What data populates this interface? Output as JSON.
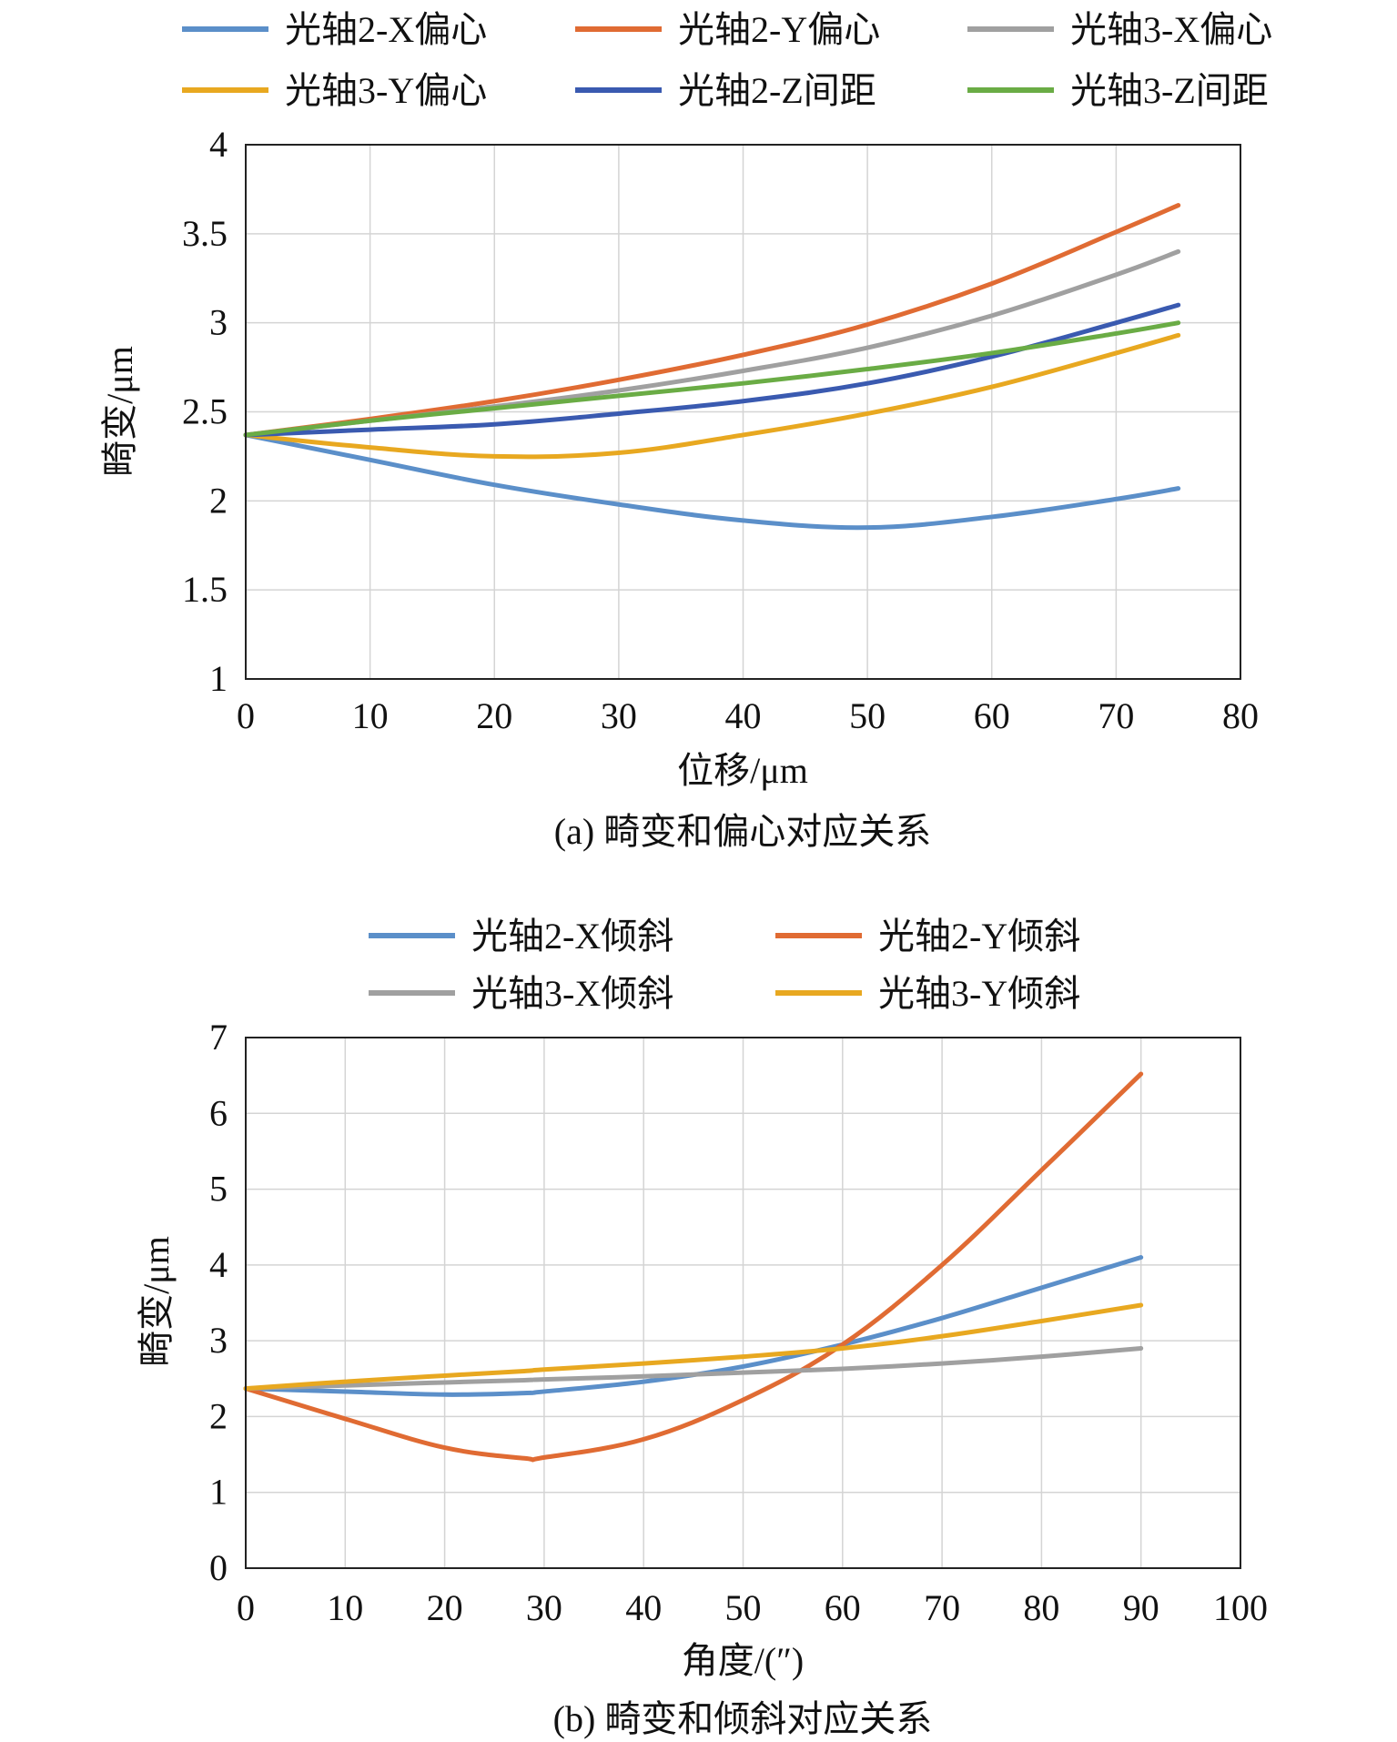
{
  "chart_data": [
    {
      "type": "line",
      "caption": "(a) 畸变和偏心对应关系",
      "xlabel": "位移/μm",
      "ylabel": "畸变/μm",
      "xlim": [
        0,
        80
      ],
      "ylim": [
        1,
        4
      ],
      "xticks": [
        "0",
        "10",
        "20",
        "30",
        "40",
        "50",
        "60",
        "70",
        "80"
      ],
      "yticks": [
        "1",
        "1.5",
        "2",
        "2.5",
        "3",
        "3.5",
        "4"
      ],
      "grid": true,
      "legend_position": "top",
      "x": [
        0,
        10,
        20,
        30,
        40,
        50,
        60,
        70,
        75
      ],
      "series": [
        {
          "name": "光轴2-X偏心",
          "color": "#5b8fc9",
          "values": [
            2.37,
            2.23,
            2.09,
            1.98,
            1.89,
            1.85,
            1.91,
            2.01,
            2.07
          ]
        },
        {
          "name": "光轴2-Y偏心",
          "color": "#e06b33",
          "values": [
            2.37,
            2.46,
            2.56,
            2.68,
            2.82,
            2.99,
            3.22,
            3.51,
            3.66
          ]
        },
        {
          "name": "光轴3-X偏心",
          "color": "#a0a0a0",
          "values": [
            2.37,
            2.45,
            2.53,
            2.62,
            2.73,
            2.86,
            3.04,
            3.27,
            3.4
          ]
        },
        {
          "name": "光轴3-Y偏心",
          "color": "#e8a820",
          "values": [
            2.37,
            2.3,
            2.25,
            2.27,
            2.37,
            2.49,
            2.64,
            2.83,
            2.93
          ]
        },
        {
          "name": "光轴2-Z间距",
          "color": "#3a5ab0",
          "values": [
            2.37,
            2.4,
            2.43,
            2.49,
            2.56,
            2.66,
            2.81,
            3.0,
            3.1
          ]
        },
        {
          "name": "光轴3-Z间距",
          "color": "#6aac45",
          "values": [
            2.37,
            2.45,
            2.52,
            2.59,
            2.66,
            2.74,
            2.83,
            2.94,
            3.0
          ]
        }
      ]
    },
    {
      "type": "line",
      "caption": "(b) 畸变和倾斜对应关系",
      "xlabel": "角度/(″)",
      "ylabel": "畸变/μm",
      "xlim": [
        0,
        100
      ],
      "ylim": [
        0,
        7
      ],
      "xticks": [
        "0",
        "10",
        "20",
        "30",
        "40",
        "50",
        "60",
        "70",
        "80",
        "90",
        "100"
      ],
      "yticks": [
        "0",
        "1",
        "2",
        "3",
        "4",
        "5",
        "6",
        "7"
      ],
      "grid": true,
      "legend_position": "top",
      "x": [
        0,
        10,
        20,
        28,
        30,
        40,
        50,
        60,
        70,
        80,
        90
      ],
      "series": [
        {
          "name": "光轴2-X倾斜",
          "color": "#5b8fc9",
          "values": [
            2.37,
            2.33,
            2.29,
            2.31,
            2.33,
            2.46,
            2.66,
            2.95,
            3.3,
            3.7,
            4.1
          ]
        },
        {
          "name": "光轴2-Y倾斜",
          "color": "#e06b33",
          "values": [
            2.37,
            1.97,
            1.59,
            1.45,
            1.46,
            1.7,
            2.22,
            2.95,
            4.0,
            5.25,
            6.52
          ]
        },
        {
          "name": "光轴3-X倾斜",
          "color": "#a0a0a0",
          "values": [
            2.37,
            2.41,
            2.45,
            2.48,
            2.49,
            2.53,
            2.58,
            2.63,
            2.7,
            2.79,
            2.9
          ]
        },
        {
          "name": "光轴3-Y倾斜",
          "color": "#e8a820",
          "values": [
            2.37,
            2.46,
            2.54,
            2.6,
            2.62,
            2.7,
            2.79,
            2.9,
            3.06,
            3.26,
            3.47
          ]
        }
      ]
    }
  ]
}
